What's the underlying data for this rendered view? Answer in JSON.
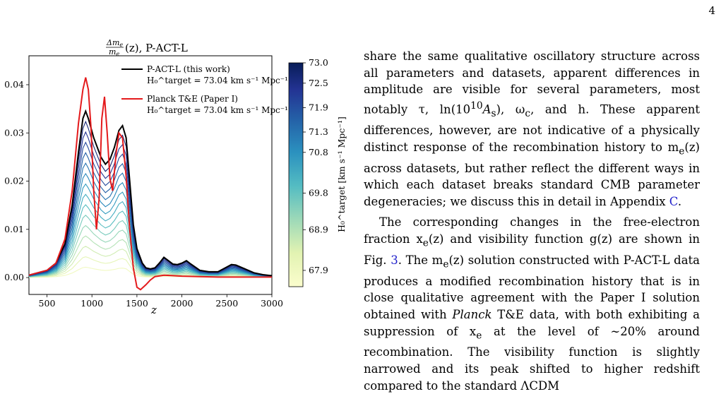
{
  "page": {
    "number": "4"
  },
  "figure": {
    "title_fraction_num": "Δm",
    "title_fraction_num_sub": "e",
    "title_fraction_den": "m",
    "title_fraction_den_sub": "e",
    "title_rest": "(z), P-ACT-L",
    "xlabel": "z",
    "colorbar_label": "H₀^target [km s⁻¹ Mpc⁻¹]",
    "legend": [
      {
        "label": "P-ACT-L (this work)",
        "sublabel": "H₀^target = 73.04 km s⁻¹ Mpc⁻¹",
        "color": "#000000"
      },
      {
        "label": "Planck T&E (Paper I)",
        "sublabel": "H₀^target = 73.04 km s⁻¹ Mpc⁻¹",
        "color": "#e41a1c"
      }
    ]
  },
  "chart_data": {
    "type": "line",
    "xlabel": "z",
    "xlim": [
      300,
      3000
    ],
    "ylim": [
      -0.0035,
      0.046
    ],
    "xticks": [
      500,
      1000,
      1500,
      2000,
      2500,
      3000
    ],
    "yticks": [
      0.0,
      0.01,
      0.02,
      0.03,
      0.04
    ],
    "series": [
      {
        "name": "P-ACT-L (this work)",
        "color": "#000000",
        "x": [
          300,
          500,
          600,
          700,
          780,
          850,
          900,
          930,
          960,
          990,
          1020,
          1060,
          1100,
          1150,
          1200,
          1250,
          1300,
          1340,
          1380,
          1420,
          1460,
          1500,
          1560,
          1600,
          1650,
          1700,
          1750,
          1800,
          1850,
          1900,
          1950,
          2000,
          2050,
          2100,
          2200,
          2300,
          2400,
          2500,
          2550,
          2600,
          2700,
          2800,
          2900,
          3000
        ],
        "y": [
          0.0005,
          0.0015,
          0.003,
          0.007,
          0.015,
          0.026,
          0.033,
          0.0345,
          0.033,
          0.031,
          0.029,
          0.027,
          0.025,
          0.0235,
          0.0245,
          0.027,
          0.0305,
          0.0315,
          0.029,
          0.02,
          0.011,
          0.006,
          0.003,
          0.002,
          0.0018,
          0.002,
          0.003,
          0.0042,
          0.0035,
          0.0028,
          0.0027,
          0.003,
          0.0035,
          0.0028,
          0.0015,
          0.0012,
          0.0012,
          0.0022,
          0.0027,
          0.0026,
          0.0018,
          0.001,
          0.0006,
          0.0004
        ]
      },
      {
        "name": "Planck T&E (Paper I)",
        "color": "#e41a1c",
        "x": [
          300,
          500,
          600,
          700,
          780,
          850,
          900,
          930,
          960,
          990,
          1020,
          1050,
          1080,
          1110,
          1140,
          1170,
          1200,
          1230,
          1270,
          1300,
          1340,
          1380,
          1420,
          1460,
          1500,
          1540,
          1600,
          1650,
          1700,
          1800,
          1900,
          2000,
          2200,
          2400,
          2600,
          2800,
          3000
        ],
        "y": [
          0.0005,
          0.0015,
          0.003,
          0.008,
          0.018,
          0.032,
          0.039,
          0.0415,
          0.039,
          0.031,
          0.018,
          0.01,
          0.0165,
          0.033,
          0.0375,
          0.03,
          0.0205,
          0.018,
          0.026,
          0.03,
          0.029,
          0.021,
          0.01,
          0.002,
          -0.002,
          -0.0025,
          -0.0015,
          -0.0005,
          0.0002,
          0.0005,
          0.0004,
          0.0003,
          0.0002,
          0.0001,
          0.0001,
          0.0001,
          0.0001
        ]
      }
    ],
    "family": {
      "n_curves": 15,
      "color_range": [
        "#fbfdcd",
        "#081d58"
      ],
      "description": "curves scaled from zero up to the P-ACT-L curve, colored by H0 target"
    },
    "colorbar": {
      "label": "H₀^target [km s⁻¹ Mpc⁻¹]",
      "range": [
        67.5,
        73.0
      ],
      "ticks": [
        "73.0",
        "72.5",
        "71.9",
        "71.3",
        "70.8",
        "69.8",
        "68.9",
        "67.9"
      ],
      "tick_values": [
        73.0,
        72.5,
        71.9,
        71.3,
        70.8,
        69.8,
        68.9,
        67.9
      ]
    }
  },
  "text": {
    "p1_a": "share the same qualitative oscillatory structure across all parameters and datasets, apparent differences in amplitude are visible for several parameters, most notably τ, ln(10",
    "p1_sup": "10",
    "p1_b": "A",
    "p1_c": "s",
    "p1_d": "), ω",
    "p1_e": "c",
    "p1_f": ", and h. These apparent differences, however, are not indicative of a physically distinct response of the recombination history to m",
    "p1_g": "e",
    "p1_h": "(z) across datasets, but rather reflect the different ways in which each dataset breaks standard CMB parameter degeneracies; we discuss this in detail in Appendix ",
    "p1_ref": "C",
    "p1_end": ".",
    "p2_a": "The corresponding changes in the free-electron fraction x",
    "p2_b": "e",
    "p2_c": "(z) and visibility function g(z) are shown in Fig. ",
    "p2_ref": "3",
    "p2_d": ". The m",
    "p2_e": "e",
    "p2_f": "(z) solution constructed with P-ACT-L data produces a modified recombination history that is in close qualitative agreement with the Paper I solution obtained with ",
    "p2_planck": "Planck",
    "p2_g": " T&E data, with both exhibiting a suppression of x",
    "p2_h": "e",
    "p2_i": " at the level of ∼20% around recombination. The visibility function is slightly narrowed and its peak shifted to higher redshift compared to the standard ΛCDM"
  }
}
